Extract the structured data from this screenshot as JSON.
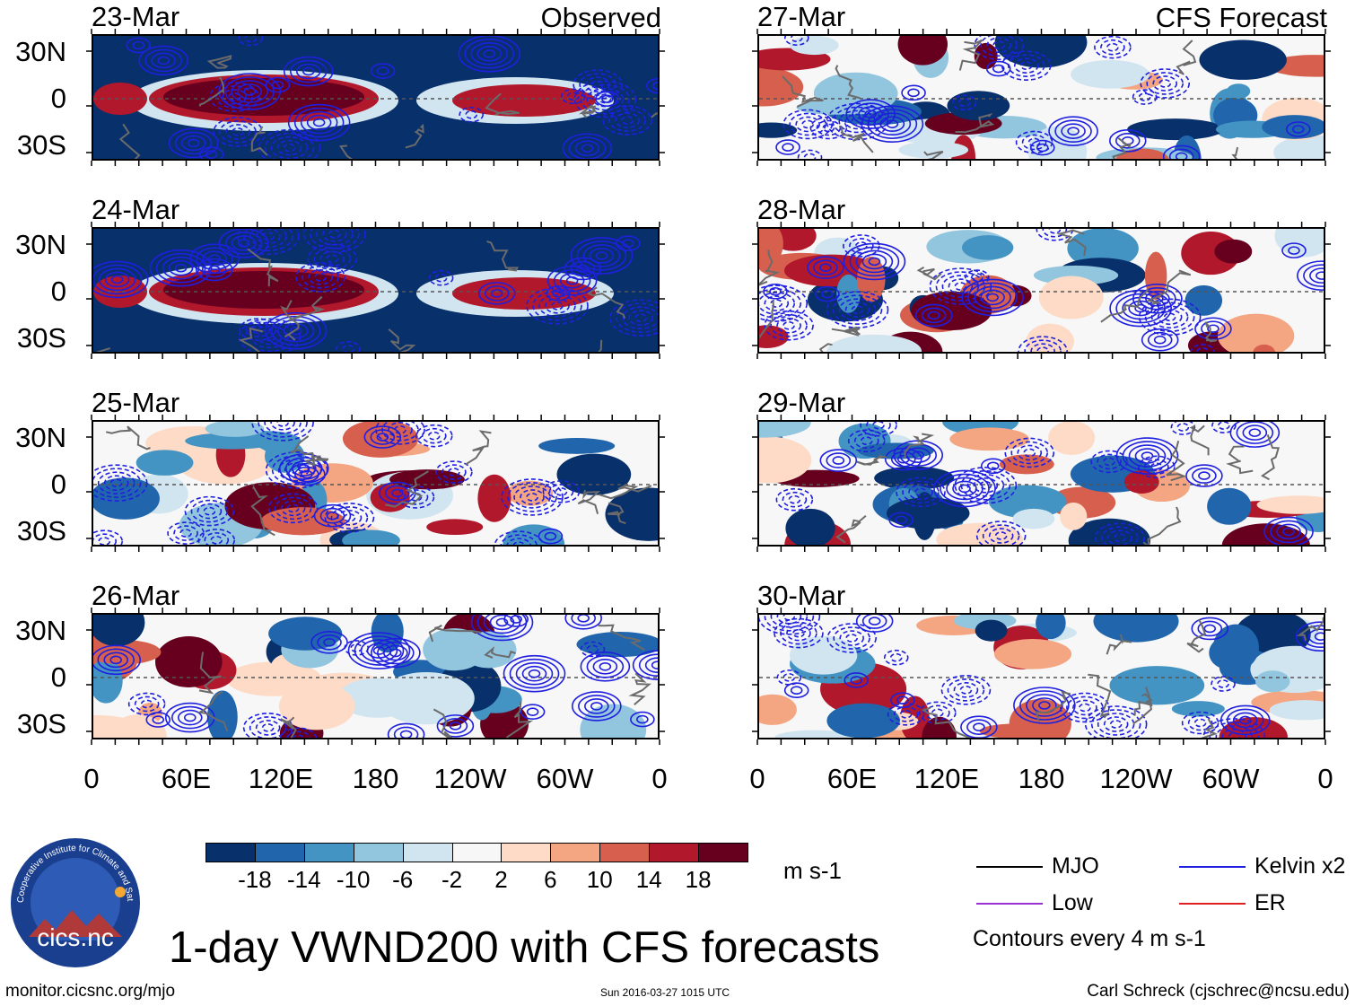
{
  "chart_data": {
    "type": "heatmap",
    "title": "1-day VWND200 with CFS forecasts",
    "variable": "VWND200",
    "units": "m s-1",
    "contour_note": "Contours every 4 m s-1",
    "column_headers": {
      "left": "Observed",
      "right": "CFS Forecast"
    },
    "ylabels": [
      "30N",
      "0",
      "30S"
    ],
    "xlabels": [
      "0",
      "60E",
      "120E",
      "180",
      "120W",
      "60W",
      "0"
    ],
    "panels_left": [
      {
        "date": "23-Mar",
        "kind": "observed"
      },
      {
        "date": "24-Mar",
        "kind": "observed"
      },
      {
        "date": "25-Mar",
        "kind": "observed"
      },
      {
        "date": "26-Mar",
        "kind": "observed"
      }
    ],
    "panels_right": [
      {
        "date": "27-Mar",
        "kind": "forecast"
      },
      {
        "date": "28-Mar",
        "kind": "forecast"
      },
      {
        "date": "29-Mar",
        "kind": "forecast"
      },
      {
        "date": "30-Mar",
        "kind": "forecast"
      }
    ],
    "colorbar": {
      "ticks": [
        "-18",
        "-14",
        "-10",
        "-6",
        "-2",
        "2",
        "6",
        "10",
        "14",
        "18"
      ],
      "colors": [
        "#08306b",
        "#2166ac",
        "#4393c3",
        "#92c5de",
        "#d1e5f0",
        "#f7f7f7",
        "#fddbc7",
        "#f4a582",
        "#d6604d",
        "#b2182b",
        "#67001f"
      ]
    },
    "legend": [
      {
        "label": "MJO",
        "color": "#000000"
      },
      {
        "label": "Kelvin x2",
        "color": "#1f1fe0"
      },
      {
        "label": "Low",
        "color": "#9b30d0"
      },
      {
        "label": "ER",
        "color": "#e02020"
      }
    ]
  },
  "footer": {
    "logo_text": "cics.nc",
    "logo_ring_text": "Cooperative Institute for Climate and Satellites",
    "url": "monitor.cicsnc.org/mjo",
    "timestamp": "Sun 2016-03-27 1015 UTC",
    "credit": "Carl Schreck (cjschrec@ncsu.edu)"
  }
}
